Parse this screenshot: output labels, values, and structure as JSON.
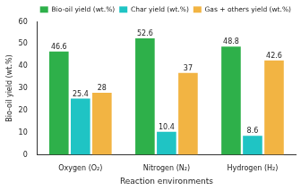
{
  "chart_data": {
    "type": "bar",
    "categories": [
      "Oxygen (O₂)",
      "Nitrogen (N₂)",
      "Hydrogen (H₂)"
    ],
    "series": [
      {
        "name": "Bio-oil yield (wt.%)",
        "color": "#2eb04a",
        "values": [
          46.6,
          52.6,
          48.8
        ]
      },
      {
        "name": "Char yield (wt.%)",
        "color": "#1fc4c4",
        "values": [
          25.4,
          10.4,
          8.6
        ]
      },
      {
        "name": "Gas + others yield (wt.%)",
        "color": "#f2b443",
        "values": [
          28,
          37,
          42.6
        ]
      }
    ],
    "x_label": "Reaction environments",
    "y_label": "Bio-oil yield (wt.%)",
    "ylim": [
      0,
      60
    ],
    "yticks": [
      0,
      10,
      20,
      30,
      40,
      50,
      60
    ],
    "grid": false,
    "legend": "upper right",
    "data_labels": true
  }
}
